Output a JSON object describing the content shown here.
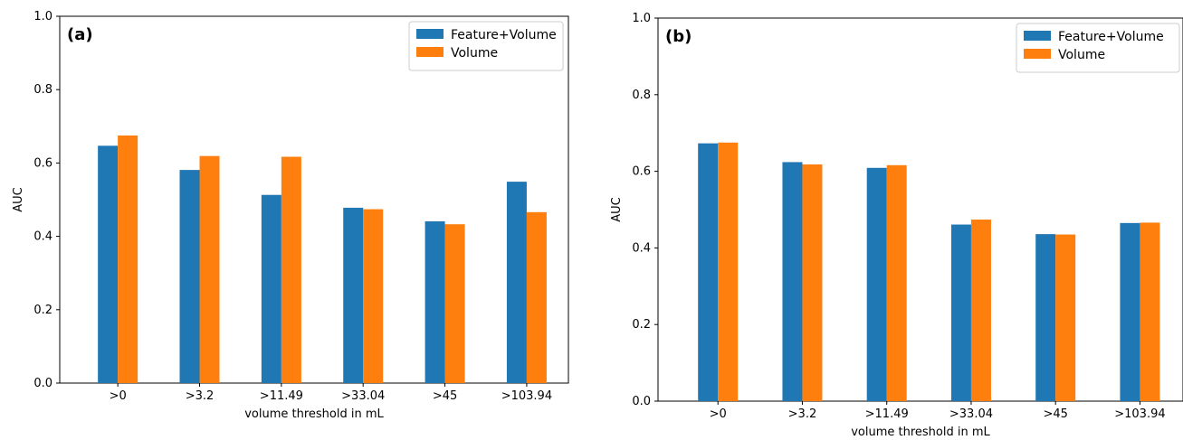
{
  "colors": {
    "feature_volume": "#1f77b4",
    "volume": "#ff7f0e"
  },
  "chart_data": [
    {
      "type": "bar",
      "panel_label": "(a)",
      "categories": [
        ">0",
        ">3.2",
        ">11.49",
        ">33.04",
        ">45",
        ">103.94"
      ],
      "series": [
        {
          "name": "Feature+Volume",
          "values": [
            0.647,
            0.581,
            0.513,
            0.478,
            0.441,
            0.549
          ]
        },
        {
          "name": "Volume",
          "values": [
            0.675,
            0.619,
            0.617,
            0.474,
            0.433,
            0.466
          ]
        }
      ],
      "xlabel": "volume threshold in mL",
      "ylabel": "AUC",
      "ylim": [
        0.0,
        1.0
      ],
      "yticks": [
        "0.0",
        "0.2",
        "0.4",
        "0.6",
        "0.8",
        "1.0"
      ],
      "grid": false,
      "legend": "top-right"
    },
    {
      "type": "bar",
      "panel_label": "(b)",
      "categories": [
        ">0",
        ">3.2",
        ">11.49",
        ">33.04",
        ">45",
        ">103.94"
      ],
      "series": [
        {
          "name": "Feature+Volume",
          "values": [
            0.673,
            0.624,
            0.609,
            0.461,
            0.436,
            0.465
          ]
        },
        {
          "name": "Volume",
          "values": [
            0.675,
            0.618,
            0.616,
            0.474,
            0.435,
            0.466
          ]
        }
      ],
      "xlabel": "volume threshold in mL",
      "ylabel": "AUC",
      "ylim": [
        0.0,
        1.0
      ],
      "yticks": [
        "0.0",
        "0.2",
        "0.4",
        "0.6",
        "0.8",
        "1.0"
      ],
      "grid": false,
      "legend": "top-right"
    }
  ]
}
